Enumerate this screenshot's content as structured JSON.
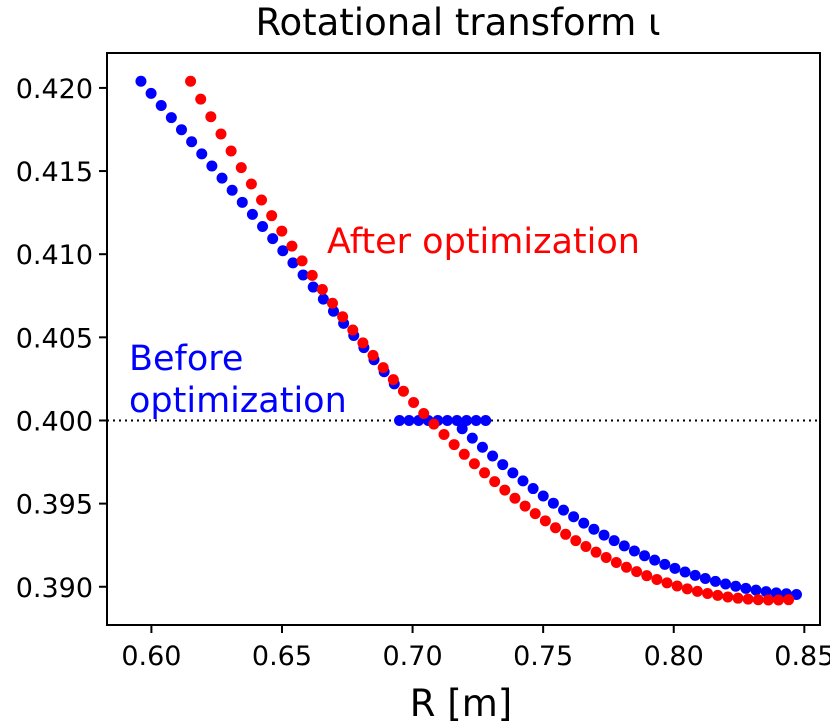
{
  "chart_data": {
    "type": "scatter",
    "title": "Rotational transform ι",
    "xlabel": "R [m]",
    "ylabel": "",
    "xlim": [
      0.583,
      0.856
    ],
    "ylim": [
      0.3877,
      0.4221
    ],
    "xticks": [
      0.6,
      0.65,
      0.7,
      0.75,
      0.8,
      0.85
    ],
    "xtick_labels": [
      "0.60",
      "0.65",
      "0.70",
      "0.75",
      "0.80",
      "0.85"
    ],
    "yticks": [
      0.39,
      0.395,
      0.4,
      0.405,
      0.41,
      0.415,
      0.42
    ],
    "ytick_labels": [
      "0.390",
      "0.395",
      "0.400",
      "0.405",
      "0.410",
      "0.415",
      "0.420"
    ],
    "reference_line": {
      "y": 0.4,
      "style": "dotted",
      "color": "#000000"
    },
    "series": [
      {
        "name": "Before optimization",
        "color": "#0000ff",
        "segments": [
          {
            "x_start": 0.596,
            "x_end": 0.693,
            "y_start": 0.4204,
            "y_end": 0.4022
          },
          {
            "x_start": 0.695,
            "x_end": 0.728,
            "y_const": 0.4
          },
          {
            "x_start": 0.719,
            "x_end": 0.847,
            "y_start": 0.3995,
            "y_end": 0.3896,
            "curve": "parabola",
            "x_vertex": 0.855,
            "y_vertex": 0.3895
          }
        ]
      },
      {
        "name": "After optimization",
        "color": "#ff0000",
        "segments": [
          {
            "x_start": 0.615,
            "x_end": 0.844,
            "y_start": 0.4204,
            "y_end": 0.3892,
            "curve": "parabola",
            "x_vertex": 0.838,
            "y_vertex": 0.3892
          }
        ]
      }
    ],
    "annotations": [
      {
        "lines": [
          "After optimization"
        ],
        "color": "#ff0000"
      },
      {
        "lines": [
          "Before",
          "optimization"
        ],
        "color": "#0000ff"
      }
    ]
  }
}
